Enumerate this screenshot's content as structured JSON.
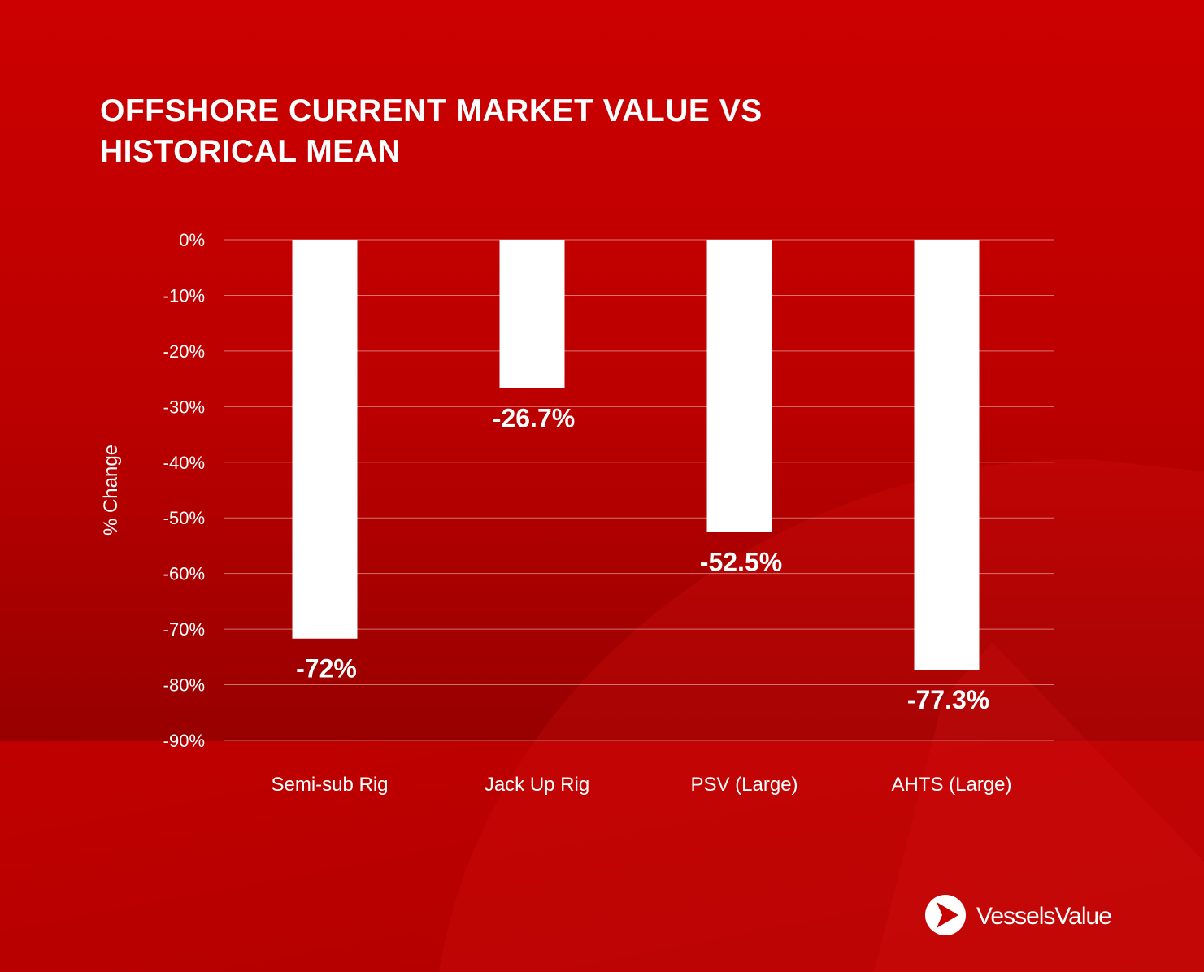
{
  "brand": {
    "name": "VesselsValue",
    "logo_icon": "vesselsvalue-logo-icon",
    "colors": {
      "background": "#c90000",
      "background_dark": "#9a0000",
      "bars": "#ffffff",
      "text": "#ffffff"
    }
  },
  "chart_data": {
    "type": "bar",
    "title": "OFFSHORE CURRENT MARKET VALUE VS HISTORICAL MEAN",
    "ylabel": "% Change",
    "xlabel": "",
    "ylim": [
      -90,
      0
    ],
    "yticks": [
      0,
      -10,
      -20,
      -30,
      -40,
      -50,
      -60,
      -70,
      -80,
      -90
    ],
    "ytick_labels": [
      "0%",
      "-10%",
      "-20%",
      "-30%",
      "-40%",
      "-50%",
      "-60%",
      "-70%",
      "-80%",
      "-90%"
    ],
    "grid": true,
    "categories": [
      "Semi-sub Rig",
      "Jack Up Rig",
      "PSV (Large)",
      "AHTS (Large)"
    ],
    "values": [
      -71.7,
      -26.7,
      -52.5,
      -77.3
    ],
    "data_labels": [
      "-72%",
      "-26.7%",
      "-52.5%",
      "-77.3%"
    ]
  }
}
